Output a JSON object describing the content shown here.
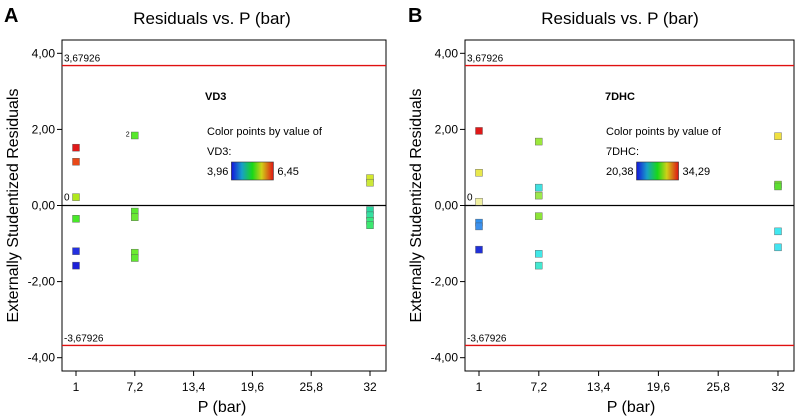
{
  "chart_data": [
    {
      "type": "scatter",
      "panel": "A",
      "title": "Residuals vs. P (bar)",
      "xlabel": "P (bar)",
      "ylabel": "Externally Studentized Residuals",
      "xticks": [
        "1",
        "7,2",
        "13,4",
        "19,6",
        "25,8",
        "32"
      ],
      "xtick_values": [
        1,
        7.2,
        13.4,
        19.6,
        25.8,
        32
      ],
      "xlim": [
        1,
        32
      ],
      "yticks": [
        "4,00",
        "2,00",
        "0,00",
        "-2,00",
        "-4,00"
      ],
      "ytick_values": [
        4,
        2,
        0,
        -2,
        -4
      ],
      "ylim": [
        -4.35,
        4.35
      ],
      "limits": [
        3.67926,
        -3.67926
      ],
      "limit_labels": [
        "3,67926",
        "-3,67926"
      ],
      "zero_label": "0",
      "variable": "VD3",
      "legend_caption": "Color points by value of",
      "legend_var": "VD3:",
      "color_min": "3,96",
      "color_max": "6,45",
      "min_color": "#1414dc",
      "max_color": "#e01414",
      "point_annotation": "2",
      "points": [
        {
          "x": 1,
          "y": 1.52,
          "color": "#e01818"
        },
        {
          "x": 1,
          "y": 1.15,
          "color": "#e84818"
        },
        {
          "x": 1,
          "y": 0.22,
          "color": "#b0e81c"
        },
        {
          "x": 1,
          "y": -0.35,
          "color": "#48e828"
        },
        {
          "x": 1,
          "y": -1.2,
          "color": "#2430e0"
        },
        {
          "x": 1,
          "y": -1.58,
          "color": "#1c20d8"
        },
        {
          "x": 7.2,
          "y": 1.84,
          "color": "#58e82c",
          "annotated": true
        },
        {
          "x": 7.2,
          "y": -0.16,
          "color": "#5ce830"
        },
        {
          "x": 7.2,
          "y": -0.31,
          "color": "#6ce834"
        },
        {
          "x": 7.2,
          "y": -1.24,
          "color": "#6cec30"
        },
        {
          "x": 7.2,
          "y": -1.38,
          "color": "#60e830"
        },
        {
          "x": 32,
          "y": 0.72,
          "color": "#d4e82c"
        },
        {
          "x": 32,
          "y": 0.6,
          "color": "#cce838"
        },
        {
          "x": 32,
          "y": -0.12,
          "color": "#2cd8a0"
        },
        {
          "x": 32,
          "y": -0.26,
          "color": "#34e0a0"
        },
        {
          "x": 32,
          "y": -0.4,
          "color": "#38e880"
        },
        {
          "x": 32,
          "y": -0.52,
          "color": "#3ce870"
        }
      ]
    },
    {
      "type": "scatter",
      "panel": "B",
      "title": "Residuals vs. P (bar)",
      "xlabel": "P (bar)",
      "ylabel": "Externally Studentized Residuals",
      "xticks": [
        "1",
        "7,2",
        "13,4",
        "19,6",
        "25,8",
        "32"
      ],
      "xtick_values": [
        1,
        7.2,
        13.4,
        19.6,
        25.8,
        32
      ],
      "xlim": [
        1,
        32
      ],
      "yticks": [
        "4,00",
        "2,00",
        "0,00",
        "-2,00",
        "-4,00"
      ],
      "ytick_values": [
        4,
        2,
        0,
        -2,
        -4
      ],
      "ylim": [
        -4.35,
        4.35
      ],
      "limits": [
        3.67926,
        -3.67926
      ],
      "limit_labels": [
        "3,67926",
        "-3,67926"
      ],
      "zero_label": "0",
      "variable": "7DHC",
      "legend_caption": "Color points by value of",
      "legend_var": "7DHC:",
      "color_min": "20,38",
      "color_max": "34,29",
      "min_color": "#1414dc",
      "max_color": "#e01414",
      "point_annotation": "",
      "points": [
        {
          "x": 1,
          "y": 1.96,
          "color": "#e01818"
        },
        {
          "x": 1,
          "y": 0.86,
          "color": "#e8e84c"
        },
        {
          "x": 1,
          "y": 0.1,
          "color": "#f0f0a0"
        },
        {
          "x": 1,
          "y": -0.45,
          "color": "#3090f0"
        },
        {
          "x": 1,
          "y": -0.55,
          "color": "#3c90ec"
        },
        {
          "x": 1,
          "y": -1.16,
          "color": "#2030d8"
        },
        {
          "x": 7.2,
          "y": 1.68,
          "color": "#9ce83c"
        },
        {
          "x": 7.2,
          "y": 0.47,
          "color": "#40e0e0"
        },
        {
          "x": 7.2,
          "y": 0.26,
          "color": "#9ce84c"
        },
        {
          "x": 7.2,
          "y": -0.28,
          "color": "#8ce438"
        },
        {
          "x": 7.2,
          "y": -1.27,
          "color": "#40e8e8"
        },
        {
          "x": 7.2,
          "y": -1.58,
          "color": "#44e8d0"
        },
        {
          "x": 32,
          "y": 1.82,
          "color": "#f0e040"
        },
        {
          "x": 32,
          "y": 0.55,
          "color": "#7ce830"
        },
        {
          "x": 32,
          "y": 0.5,
          "color": "#5ce030"
        },
        {
          "x": 32,
          "y": -0.68,
          "color": "#40e8f0"
        },
        {
          "x": 32,
          "y": -1.1,
          "color": "#44e4f0"
        }
      ]
    }
  ]
}
